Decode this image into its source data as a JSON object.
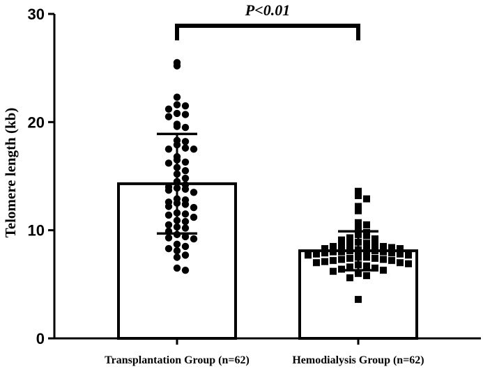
{
  "chart_data": {
    "type": "bar",
    "ylabel": "Telomere length (kb)",
    "ylim": [
      0,
      30
    ],
    "yticks": [
      "0",
      "10",
      "20",
      "30"
    ],
    "categories": [
      "Transplantation Group (n=62)",
      "Hemodialysis Group (n=62)"
    ],
    "means": [
      14.3,
      8.1
    ],
    "sd": [
      4.6,
      1.8
    ],
    "significance": "P<0.01",
    "point_markers": [
      "circle",
      "square"
    ],
    "points": [
      [
        25.5,
        25.2,
        22.3,
        21.6,
        21.5,
        21.2,
        20.8,
        20.7,
        20.5,
        19.8,
        19.6,
        19.5,
        18.3,
        18.2,
        17.9,
        17.6,
        17.5,
        17.5,
        16.8,
        16.5,
        16.3,
        16.2,
        15.8,
        15.5,
        15.2,
        14.8,
        14.5,
        14.2,
        14.0,
        13.9,
        13.8,
        13.7,
        13.5,
        12.9,
        12.8,
        12.6,
        12.5,
        12.4,
        12.2,
        12.1,
        11.6,
        11.5,
        11.4,
        11.2,
        10.9,
        10.8,
        10.5,
        10.3,
        10.2,
        9.9,
        9.6,
        9.4,
        9.3,
        9.2,
        8.7,
        8.5,
        8.3,
        8.1,
        7.7,
        7.5,
        6.5,
        6.3
      ],
      [
        13.6,
        13.2,
        12.9,
        12.2,
        11.8,
        10.7,
        10.5,
        10.2,
        9.8,
        9.6,
        9.5,
        9.3,
        9.2,
        9.1,
        8.9,
        8.8,
        8.7,
        8.7,
        8.6,
        8.5,
        8.5,
        8.4,
        8.3,
        8.3,
        8.2,
        8.2,
        8.1,
        8.1,
        8.0,
        8.0,
        8.0,
        7.9,
        7.9,
        7.8,
        7.8,
        7.7,
        7.7,
        7.6,
        7.6,
        7.5,
        7.5,
        7.4,
        7.4,
        7.3,
        7.3,
        7.2,
        7.2,
        7.1,
        7.0,
        7.0,
        6.9,
        6.8,
        6.7,
        6.6,
        6.5,
        6.4,
        6.3,
        6.2,
        6.0,
        5.8,
        5.6,
        3.6
      ]
    ]
  }
}
